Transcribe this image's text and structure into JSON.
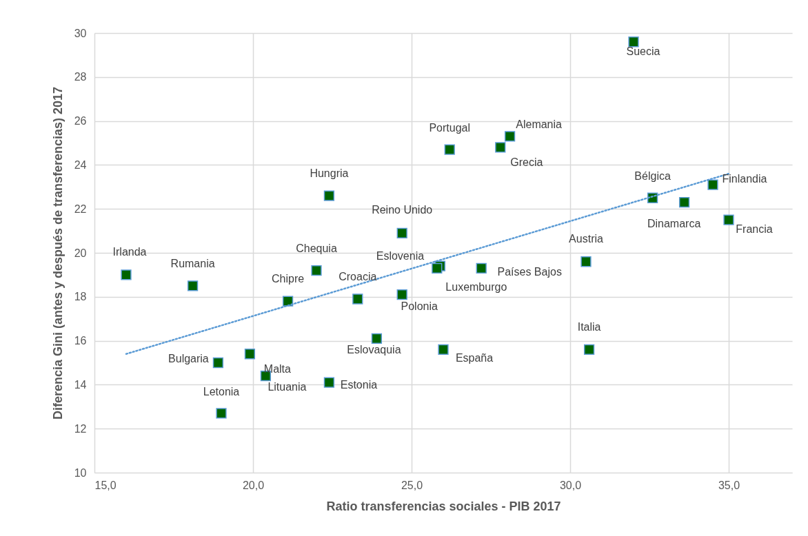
{
  "chart_data": {
    "type": "scatter",
    "xlabel": "Ratio  transferencias sociales - PIB 2017",
    "ylabel": "Diferencia Gini  (antes y después de transferencias) 2017",
    "xlim": [
      15,
      37
    ],
    "xticks": [
      {
        "value": 15,
        "label": "15,0"
      },
      {
        "value": 20,
        "label": "20,0"
      },
      {
        "value": 25,
        "label": "25,0"
      },
      {
        "value": 30,
        "label": "30,0"
      },
      {
        "value": 35,
        "label": "35,0"
      }
    ],
    "ylim": [
      10,
      30
    ],
    "yticks": [
      10,
      12,
      14,
      16,
      18,
      20,
      22,
      24,
      26,
      28,
      30
    ],
    "grid": true,
    "marker": "square",
    "series": [
      {
        "type": "scatter",
        "color": "#006400",
        "x": [
          32.0,
          26.2,
          28.1,
          27.8,
          22.4,
          32.6,
          34.5,
          33.6,
          35.0,
          24.7,
          30.5,
          16.0,
          18.1,
          22.0,
          25.9,
          25.8,
          27.2,
          21.1,
          23.3,
          24.7,
          30.6,
          23.9,
          26.0,
          19.9,
          18.9,
          20.4,
          22.4,
          19.0
        ],
        "values": [
          29.6,
          24.7,
          25.3,
          24.8,
          22.6,
          22.5,
          23.1,
          22.3,
          21.5,
          20.9,
          19.6,
          19.0,
          18.5,
          19.2,
          19.4,
          19.3,
          19.3,
          17.8,
          17.9,
          18.1,
          15.6,
          16.1,
          15.6,
          15.4,
          15.0,
          14.4,
          14.1,
          12.7
        ]
      },
      {
        "type": "line",
        "color": "#5b9bd5",
        "line_style": "dotted",
        "marker": "none",
        "x": [
          16.0,
          35.0
        ],
        "values": [
          15.4,
          23.6
        ]
      }
    ],
    "annotations": [
      {
        "text": "Suecia",
        "x": 32.0,
        "y": 29.6
      },
      {
        "text": "Portugal",
        "x": 26.2,
        "y": 24.7
      },
      {
        "text": "Alemania",
        "x": 28.1,
        "y": 25.3
      },
      {
        "text": "Grecia",
        "x": 27.8,
        "y": 24.8
      },
      {
        "text": "Hungria",
        "x": 22.4,
        "y": 22.6
      },
      {
        "text": "Bélgica",
        "x": 32.6,
        "y": 22.5
      },
      {
        "text": "Finlandia",
        "x": 34.5,
        "y": 23.1
      },
      {
        "text": "Dinamarca",
        "x": 33.6,
        "y": 22.3
      },
      {
        "text": "Francia",
        "x": 35.0,
        "y": 21.5
      },
      {
        "text": "Reino Unido",
        "x": 24.7,
        "y": 20.9
      },
      {
        "text": "Austria",
        "x": 30.5,
        "y": 19.6
      },
      {
        "text": "Irlanda",
        "x": 16.0,
        "y": 19.0
      },
      {
        "text": "Rumania",
        "x": 18.1,
        "y": 18.5
      },
      {
        "text": "Chequia",
        "x": 22.0,
        "y": 19.2
      },
      {
        "text": "Eslovenia",
        "x": 25.9,
        "y": 19.4
      },
      {
        "text": "Luxemburgo",
        "x": 25.8,
        "y": 19.3
      },
      {
        "text": "Países Bajos",
        "x": 27.2,
        "y": 19.3
      },
      {
        "text": "Chipre",
        "x": 21.1,
        "y": 17.8
      },
      {
        "text": "Croacia",
        "x": 23.3,
        "y": 17.9
      },
      {
        "text": "Polonia",
        "x": 24.7,
        "y": 18.1
      },
      {
        "text": "Italia",
        "x": 30.6,
        "y": 15.6
      },
      {
        "text": "Eslovaquia",
        "x": 23.9,
        "y": 16.1
      },
      {
        "text": "España",
        "x": 26.0,
        "y": 15.6
      },
      {
        "text": "Malta",
        "x": 19.9,
        "y": 15.4
      },
      {
        "text": "Bulgaria",
        "x": 18.9,
        "y": 15.0
      },
      {
        "text": "Lituania",
        "x": 20.4,
        "y": 14.4
      },
      {
        "text": "Estonia",
        "x": 22.4,
        "y": 14.1
      },
      {
        "text": "Letonia",
        "x": 19.0,
        "y": 12.7
      }
    ]
  }
}
